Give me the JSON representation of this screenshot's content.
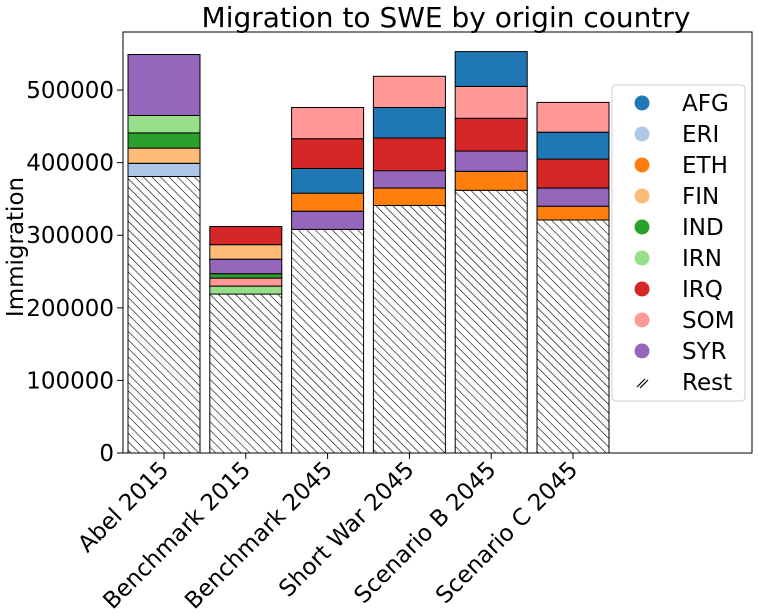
{
  "chart_data": {
    "type": "bar",
    "stacked": true,
    "title": "Migration to SWE by origin country",
    "xlabel": "",
    "ylabel": "Immigration",
    "ylim": [
      0,
      580000
    ],
    "yticks": [
      0,
      100000,
      200000,
      300000,
      400000,
      500000
    ],
    "ytick_labels": [
      "0",
      "100000",
      "200000",
      "300000",
      "400000",
      "500000"
    ],
    "categories": [
      "Abel 2015",
      "Benchmark 2015",
      "Benchmark 2045",
      "Short War 2045",
      "Scenario B 2045",
      "Scenario C 2045"
    ],
    "legend_position": "right",
    "series": [
      {
        "name": "Rest",
        "color": "#ffffff",
        "pattern": "hatch",
        "values": [
          381000,
          219000,
          308000,
          341000,
          362000,
          321000
        ]
      },
      {
        "name": "ERI",
        "color": "#aec7e8",
        "values": [
          18000,
          0,
          0,
          0,
          0,
          0
        ]
      },
      {
        "name": "IRN",
        "color": "#98df8a",
        "values": [
          0,
          11000,
          0,
          0,
          0,
          0
        ]
      },
      {
        "name": "FIN",
        "color": "#ffbb78",
        "values": [
          21000,
          0,
          0,
          0,
          0,
          0
        ]
      },
      {
        "name": "IND",
        "color": "#2ca02c",
        "values": [
          21000,
          0,
          0,
          0,
          0,
          0
        ]
      },
      {
        "name": "IRN",
        "color": "#98df8a",
        "values": [
          24000,
          0,
          0,
          0,
          0,
          0
        ]
      },
      {
        "name": "SOM",
        "color": "#ff9896",
        "values": [
          0,
          11000,
          0,
          0,
          0,
          0
        ]
      },
      {
        "name": "IND",
        "color": "#2ca02c",
        "values": [
          0,
          6000,
          0,
          0,
          0,
          0
        ]
      },
      {
        "name": "ETH",
        "color": "#ff7f0e",
        "values": [
          0,
          0,
          0,
          24000,
          26000,
          19000
        ]
      },
      {
        "name": "SYR",
        "color": "#9467bd",
        "values": [
          84000,
          20000,
          25000,
          24000,
          28000,
          25000
        ]
      },
      {
        "name": "ETH",
        "color": "#ff7f0e",
        "values": [
          0,
          0,
          25000,
          0,
          0,
          0
        ]
      },
      {
        "name": "FIN",
        "color": "#ffbb78",
        "values": [
          0,
          20000,
          0,
          0,
          0,
          0
        ]
      },
      {
        "name": "AFG",
        "color": "#1f77b4",
        "values": [
          0,
          0,
          34000,
          0,
          0,
          0
        ]
      },
      {
        "name": "IRQ",
        "color": "#d62728",
        "values": [
          0,
          25000,
          41000,
          45000,
          45000,
          40000
        ]
      },
      {
        "name": "AFG",
        "color": "#1f77b4",
        "values": [
          0,
          0,
          0,
          42000,
          0,
          37000
        ]
      },
      {
        "name": "SOM",
        "color": "#ff9896",
        "values": [
          0,
          0,
          43000,
          43000,
          44000,
          41000
        ]
      },
      {
        "name": "AFG",
        "color": "#1f77b4",
        "values": [
          0,
          0,
          0,
          0,
          48000,
          0
        ]
      }
    ],
    "legend": [
      {
        "label": "AFG",
        "color": "#1f77b4"
      },
      {
        "label": "ERI",
        "color": "#aec7e8"
      },
      {
        "label": "ETH",
        "color": "#ff7f0e"
      },
      {
        "label": "FIN",
        "color": "#ffbb78"
      },
      {
        "label": "IND",
        "color": "#2ca02c"
      },
      {
        "label": "IRN",
        "color": "#98df8a"
      },
      {
        "label": "IRQ",
        "color": "#d62728"
      },
      {
        "label": "SOM",
        "color": "#ff9896"
      },
      {
        "label": "SYR",
        "color": "#9467bd"
      },
      {
        "label": "Rest",
        "color": "#ffffff",
        "pattern": "hatch"
      }
    ]
  }
}
